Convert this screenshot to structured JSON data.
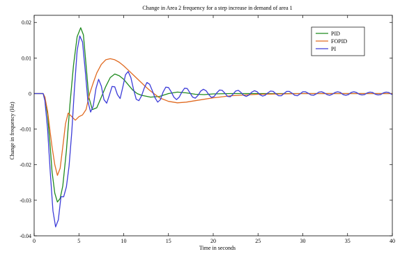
{
  "chart_data": {
    "type": "line",
    "title": "Change in Area 2 frequency for a step increase in demand of area 1",
    "xlabel": "Time in seconds",
    "ylabel": "Change in frequency (Hz)",
    "xlim": [
      0,
      40
    ],
    "ylim": [
      -0.04,
      0.022
    ],
    "xticks": [
      0,
      5,
      10,
      15,
      20,
      25,
      30,
      35,
      40
    ],
    "yticks": [
      -0.04,
      -0.03,
      -0.02,
      -0.01,
      0,
      0.01,
      0.02
    ],
    "xtick_labels": [
      "0",
      "5",
      "10",
      "15",
      "20",
      "25",
      "30",
      "35",
      "40"
    ],
    "ytick_labels": [
      "-0.04",
      "-0.03",
      "-0.02",
      "-0.01",
      "0",
      "0.01",
      "0.02"
    ],
    "grid": false,
    "legend_position": "top-right",
    "series": [
      {
        "name": "PID",
        "color": "#1f8a1f",
        "x": [
          0,
          1,
          1.2,
          1.5,
          1.8,
          2.0,
          2.3,
          2.6,
          2.9,
          3.2,
          3.6,
          4.0,
          4.4,
          4.8,
          5.2,
          5.5,
          5.8,
          6.1,
          6.5,
          7.0,
          7.5,
          8.0,
          8.5,
          9.0,
          9.5,
          10.0,
          10.5,
          11.0,
          11.5,
          12.0,
          13.0,
          14.0,
          15.0,
          16.0,
          17.0,
          18.0,
          19.0,
          20.0,
          22.0,
          25.0,
          30.0,
          35.0,
          40.0
        ],
        "y": [
          0,
          0,
          -0.001,
          -0.006,
          -0.015,
          -0.022,
          -0.028,
          -0.0305,
          -0.0295,
          -0.026,
          -0.016,
          -0.003,
          0.008,
          0.016,
          0.0185,
          0.0165,
          0.008,
          -0.001,
          -0.0045,
          -0.004,
          -0.001,
          0.002,
          0.0045,
          0.0055,
          0.005,
          0.004,
          0.0025,
          0.001,
          0.0,
          -0.0005,
          -0.001,
          -0.0008,
          0.0,
          0.0004,
          0.0002,
          -0.0002,
          -0.0003,
          -0.0001,
          0.0,
          0.0,
          0.0,
          0.0,
          0.0
        ]
      },
      {
        "name": "FOPID",
        "color": "#e06a20",
        "x": [
          0,
          1,
          1.2,
          1.5,
          1.8,
          2.0,
          2.3,
          2.6,
          2.9,
          3.2,
          3.5,
          3.8,
          4.2,
          4.6,
          5.0,
          5.4,
          5.8,
          6.2,
          6.6,
          7.0,
          7.5,
          8.0,
          8.5,
          9.0,
          9.5,
          10.0,
          10.5,
          11.0,
          11.5,
          12.0,
          12.5,
          13.0,
          14.0,
          15.0,
          16.0,
          17.0,
          18.0,
          20.0,
          22.0,
          25.0,
          30.0,
          35.0,
          40.0
        ],
        "y": [
          0,
          0,
          -0.001,
          -0.005,
          -0.011,
          -0.015,
          -0.02,
          -0.023,
          -0.021,
          -0.015,
          -0.0085,
          -0.0055,
          -0.0065,
          -0.0075,
          -0.0065,
          -0.006,
          -0.0045,
          0.0,
          0.003,
          0.0058,
          0.0082,
          0.0095,
          0.0098,
          0.0095,
          0.0088,
          0.0078,
          0.0066,
          0.0054,
          0.0042,
          0.003,
          0.0018,
          0.0007,
          -0.0012,
          -0.0022,
          -0.0026,
          -0.0024,
          -0.002,
          -0.0012,
          -0.0006,
          -0.0002,
          0.0,
          0.0,
          0.0
        ]
      },
      {
        "name": "PI",
        "color": "#3c3cd8",
        "x": [
          0,
          1,
          1.2,
          1.5,
          1.8,
          2.1,
          2.4,
          2.7,
          3.0,
          3.3,
          3.6,
          3.9,
          4.2,
          4.5,
          4.8,
          5.1,
          5.4,
          5.7,
          6.0,
          6.3,
          6.6,
          6.9,
          7.2,
          7.5,
          7.8,
          8.1,
          8.4,
          8.7,
          9.0,
          9.3,
          9.6,
          9.9,
          10.2,
          10.5,
          10.8,
          11.1,
          11.4,
          11.7,
          12.0,
          12.3,
          12.6,
          12.9,
          13.2,
          13.5,
          13.8,
          14.1,
          14.4,
          14.7,
          15.0,
          15.3,
          15.6,
          15.9,
          16.2,
          16.5,
          16.8,
          17.1,
          17.4,
          17.7,
          18.0,
          18.3,
          18.6,
          18.9,
          19.2,
          19.5,
          19.8,
          20.1,
          20.4,
          20.7,
          21.0,
          21.3,
          21.6,
          21.9,
          22.2,
          22.5,
          22.8,
          23.1,
          23.4,
          23.7,
          24.0,
          24.3,
          24.6,
          24.9,
          25.2,
          25.5,
          25.8,
          26.1,
          26.4,
          26.7,
          27.0,
          27.3,
          27.6,
          27.9,
          28.2,
          28.5,
          28.8,
          29.1,
          29.4,
          29.7,
          30.0,
          30.3,
          30.6,
          30.9,
          31.2,
          31.5,
          31.8,
          32.1,
          32.4,
          32.7,
          33.0,
          33.3,
          33.6,
          33.9,
          34.2,
          34.5,
          34.8,
          35.1,
          35.4,
          35.7,
          36.0,
          36.3,
          36.6,
          36.9,
          37.2,
          37.5,
          37.8,
          38.1,
          38.4,
          38.7,
          39.0,
          39.3,
          39.6,
          39.9,
          40.0
        ],
        "y": [
          0,
          0,
          -0.002,
          -0.01,
          -0.022,
          -0.033,
          -0.0375,
          -0.0355,
          -0.029,
          -0.029,
          -0.0262,
          -0.0204,
          -0.0108,
          0.0013,
          0.0121,
          0.0162,
          0.0145,
          0.0067,
          -0.0021,
          -0.0052,
          -0.0035,
          0.0014,
          0.004,
          0.0021,
          -0.0017,
          -0.0027,
          -0.0005,
          0.002,
          0.0019,
          -0.0003,
          -0.0014,
          0.0018,
          0.0053,
          0.0062,
          0.0045,
          0.0012,
          -0.0016,
          -0.002,
          -0.0006,
          0.0016,
          0.0031,
          0.0026,
          0.0008,
          -0.0012,
          -0.0024,
          -0.0017,
          0.0004,
          0.0018,
          0.0017,
          0.0005,
          -0.001,
          -0.0017,
          -0.001,
          0.0004,
          0.0015,
          0.0014,
          0.0002,
          -0.001,
          -0.0013,
          -0.0005,
          0.0007,
          0.0012,
          0.0008,
          -0.0003,
          -0.0011,
          -0.0008,
          0.0002,
          0.001,
          0.0009,
          0.0001,
          -0.0008,
          -0.0009,
          -0.0002,
          0.0007,
          0.0009,
          0.0003,
          -0.0005,
          -0.0008,
          -0.0004,
          0.0004,
          0.0008,
          0.0005,
          -0.0003,
          -0.0007,
          -0.0005,
          0.0002,
          0.0007,
          0.0006,
          -0.0001,
          -0.0006,
          -0.0006,
          0.0,
          0.0006,
          0.0006,
          0.0001,
          -0.0005,
          -0.0006,
          -0.0001,
          0.0005,
          0.0005,
          0.0001,
          -0.0004,
          -0.0005,
          -0.0001,
          0.0004,
          0.0005,
          0.0002,
          -0.0003,
          -0.0005,
          -0.0002,
          0.0003,
          0.0005,
          0.0003,
          -0.0003,
          -0.0005,
          -0.0003,
          0.0003,
          0.0005,
          0.0003,
          -0.0002,
          -0.0004,
          -0.0003,
          0.0002,
          0.0004,
          0.0003,
          -0.0002,
          -0.0004,
          -0.0003,
          0.0002,
          0.0004,
          0.0003,
          -0.0002,
          -0.0002
        ]
      }
    ]
  }
}
